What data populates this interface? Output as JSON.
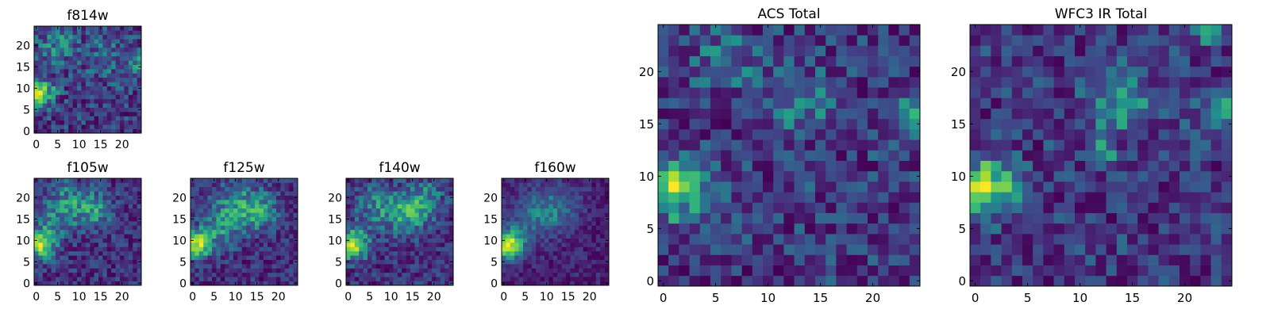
{
  "chart_data": [
    {
      "type": "heatmap",
      "title": "f814w",
      "grid_size": 25,
      "x_ticks": [
        0,
        5,
        10,
        15,
        20
      ],
      "y_ticks": [
        0,
        5,
        10,
        15,
        20
      ],
      "xlim": [
        -0.5,
        24.5
      ],
      "ylim": [
        -0.5,
        24.5
      ],
      "colormap": "viridis",
      "features": [
        {
          "x": 1,
          "y": 9,
          "value": 1.0,
          "sigma": 2.2
        },
        {
          "x": 5,
          "y": 20,
          "value": 0.35,
          "sigma": 3.0
        },
        {
          "x": 16,
          "y": 17,
          "value": 0.35,
          "sigma": 3.0
        },
        {
          "x": 24,
          "y": 16,
          "value": 0.45,
          "sigma": 1.6
        }
      ],
      "baseline": 0.5,
      "noise": 0.35,
      "seed": 11
    },
    {
      "type": "heatmap",
      "title": "f105w",
      "grid_size": 25,
      "x_ticks": [
        0,
        5,
        10,
        15,
        20
      ],
      "y_ticks": [
        0,
        5,
        10,
        15,
        20
      ],
      "xlim": [
        -0.5,
        24.5
      ],
      "ylim": [
        -0.5,
        24.5
      ],
      "colormap": "viridis",
      "features": [
        {
          "x": 1,
          "y": 9,
          "value": 1.0,
          "sigma": 2.4
        },
        {
          "x": 8,
          "y": 19,
          "value": 0.45,
          "sigma": 3.5
        },
        {
          "x": 14,
          "y": 17,
          "value": 0.45,
          "sigma": 3.0
        },
        {
          "x": 4,
          "y": 14,
          "value": 0.3,
          "sigma": 3.0
        }
      ],
      "baseline": 0.45,
      "noise": 0.28,
      "seed": 23
    },
    {
      "type": "heatmap",
      "title": "f125w",
      "grid_size": 25,
      "x_ticks": [
        0,
        5,
        10,
        15,
        20
      ],
      "y_ticks": [
        0,
        5,
        10,
        15,
        20
      ],
      "xlim": [
        -0.5,
        24.5
      ],
      "ylim": [
        -0.5,
        24.5
      ],
      "colormap": "viridis",
      "features": [
        {
          "x": 1,
          "y": 9,
          "value": 1.0,
          "sigma": 2.2
        },
        {
          "x": 10,
          "y": 18,
          "value": 0.5,
          "sigma": 4.0
        },
        {
          "x": 16,
          "y": 17,
          "value": 0.45,
          "sigma": 3.0
        },
        {
          "x": 6,
          "y": 12,
          "value": 0.35,
          "sigma": 3.0
        }
      ],
      "baseline": 0.45,
      "noise": 0.25,
      "seed": 37
    },
    {
      "type": "heatmap",
      "title": "f140w",
      "grid_size": 25,
      "x_ticks": [
        0,
        5,
        10,
        15,
        20
      ],
      "y_ticks": [
        0,
        5,
        10,
        15,
        20
      ],
      "xlim": [
        -0.5,
        24.5
      ],
      "ylim": [
        -0.5,
        24.5
      ],
      "colormap": "viridis",
      "features": [
        {
          "x": 1,
          "y": 9,
          "value": 1.0,
          "sigma": 2.4
        },
        {
          "x": 14,
          "y": 16,
          "value": 0.55,
          "sigma": 3.2
        },
        {
          "x": 7,
          "y": 18,
          "value": 0.4,
          "sigma": 3.5
        },
        {
          "x": 18,
          "y": 20,
          "value": 0.35,
          "sigma": 3.0
        }
      ],
      "baseline": 0.45,
      "noise": 0.25,
      "seed": 41
    },
    {
      "type": "heatmap",
      "title": "f160w",
      "grid_size": 25,
      "x_ticks": [
        0,
        5,
        10,
        15,
        20
      ],
      "y_ticks": [
        0,
        5,
        10,
        15,
        20
      ],
      "xlim": [
        -0.5,
        24.5
      ],
      "ylim": [
        -0.5,
        24.5
      ],
      "colormap": "viridis",
      "features": [
        {
          "x": 1,
          "y": 9,
          "value": 1.0,
          "sigma": 2.4
        },
        {
          "x": 12,
          "y": 18,
          "value": 0.35,
          "sigma": 4.0
        },
        {
          "x": 6,
          "y": 15,
          "value": 0.25,
          "sigma": 4.0
        }
      ],
      "baseline": 0.35,
      "noise": 0.15,
      "seed": 53
    },
    {
      "type": "heatmap",
      "title": "ACS Total",
      "grid_size": 25,
      "x_ticks": [
        0,
        5,
        10,
        15,
        20
      ],
      "y_ticks": [
        0,
        5,
        10,
        15,
        20
      ],
      "xlim": [
        -0.5,
        24.5
      ],
      "ylim": [
        -0.5,
        24.5
      ],
      "colormap": "viridis",
      "features": [
        {
          "x": 1,
          "y": 9,
          "value": 1.0,
          "sigma": 2.0
        },
        {
          "x": 6,
          "y": 21,
          "value": 0.4,
          "sigma": 1.8
        },
        {
          "x": 13,
          "y": 17,
          "value": 0.4,
          "sigma": 2.0
        },
        {
          "x": 24,
          "y": 16,
          "value": 0.5,
          "sigma": 1.6
        }
      ],
      "baseline": 0.55,
      "noise": 0.35,
      "seed": 67
    },
    {
      "type": "heatmap",
      "title": "WFC3 IR Total",
      "grid_size": 25,
      "x_ticks": [
        0,
        5,
        10,
        15,
        20
      ],
      "y_ticks": [
        0,
        5,
        10,
        15,
        20
      ],
      "xlim": [
        -0.5,
        24.5
      ],
      "ylim": [
        -0.5,
        24.5
      ],
      "colormap": "viridis",
      "features": [
        {
          "x": 1,
          "y": 9,
          "value": 1.0,
          "sigma": 2.0
        },
        {
          "x": 14,
          "y": 17,
          "value": 0.45,
          "sigma": 2.2
        },
        {
          "x": 12,
          "y": 12,
          "value": 0.45,
          "sigma": 0.9
        },
        {
          "x": 22,
          "y": 24,
          "value": 0.5,
          "sigma": 0.9
        },
        {
          "x": 24,
          "y": 16,
          "value": 0.45,
          "sigma": 1.6
        }
      ],
      "baseline": 0.5,
      "noise": 0.32,
      "seed": 79
    }
  ]
}
